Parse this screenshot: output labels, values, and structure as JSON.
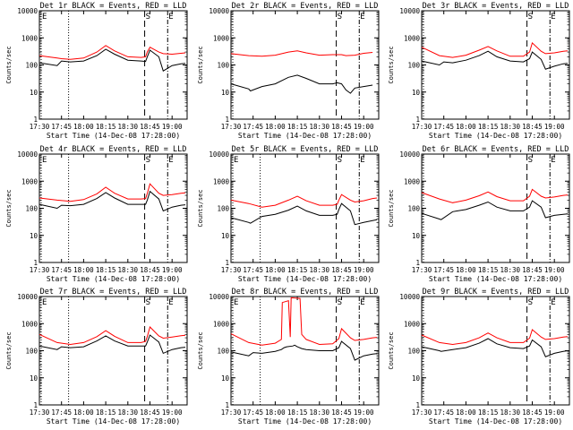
{
  "chart_data": [
    {
      "type": "line",
      "title": "Det 1r BLACK = Events, RED = LLD",
      "xlabel": "Start Time (14-Dec-08 17:28:00)",
      "ylabel": "Counts/sec",
      "xticks": [
        "17:30",
        "17:45",
        "18:00",
        "18:15",
        "18:30",
        "18:45",
        "19:00"
      ],
      "yticks": [
        "1",
        "10",
        "100",
        "1000",
        "10000"
      ],
      "yscale": "log",
      "markers": [
        "E",
        "S",
        "E"
      ],
      "series": [
        {
          "name": "Events",
          "color": "#000000",
          "x": [
            17.5,
            17.7,
            17.75,
            17.85,
            18.0,
            18.15,
            18.25,
            18.35,
            18.5,
            18.65,
            18.7,
            18.72,
            18.75,
            18.85,
            18.9,
            19.0,
            19.1,
            19.15
          ],
          "y": [
            120,
            95,
            140,
            130,
            140,
            220,
            380,
            250,
            150,
            140,
            135,
            200,
            350,
            200,
            60,
            95,
            110,
            115
          ]
        },
        {
          "name": "LLD",
          "color": "#ff0000",
          "x": [
            17.5,
            17.7,
            17.75,
            17.85,
            18.0,
            18.15,
            18.25,
            18.35,
            18.5,
            18.65,
            18.7,
            18.72,
            18.75,
            18.85,
            18.9,
            19.0,
            19.1,
            19.15
          ],
          "y": [
            220,
            180,
            170,
            160,
            180,
            300,
            520,
            330,
            200,
            190,
            200,
            300,
            450,
            300,
            260,
            250,
            270,
            280
          ]
        }
      ]
    },
    {
      "type": "line",
      "title": "Det 2r BLACK = Events, RED = LLD",
      "xlabel": "Start Time (14-Dec-08 17:28:00)",
      "ylabel": "Counts/sec",
      "xticks": [
        "17:30",
        "17:45",
        "18:00",
        "18:15",
        "18:30",
        "18:45",
        "19:00"
      ],
      "yticks": [
        "1",
        "10",
        "100",
        "1000",
        "10000"
      ],
      "yscale": "log",
      "markers": [
        "S",
        "E"
      ],
      "series": [
        {
          "name": "Events",
          "color": "#000000",
          "x": [
            17.5,
            17.7,
            17.72,
            17.85,
            18.0,
            18.15,
            18.25,
            18.35,
            18.5,
            18.65,
            18.7,
            18.75,
            18.8,
            18.85,
            18.9,
            19.0,
            19.1
          ],
          "y": [
            20,
            13,
            11,
            16,
            20,
            35,
            42,
            32,
            20,
            20,
            22,
            20,
            12,
            9,
            14,
            16,
            18
          ]
        },
        {
          "name": "LLD",
          "color": "#ff0000",
          "x": [
            17.5,
            17.7,
            17.85,
            18.0,
            18.15,
            18.25,
            18.35,
            18.5,
            18.65,
            18.75,
            18.8,
            18.9,
            19.0,
            19.1
          ],
          "y": [
            260,
            220,
            210,
            230,
            300,
            330,
            280,
            230,
            240,
            240,
            220,
            230,
            270,
            290
          ]
        }
      ]
    },
    {
      "type": "line",
      "title": "Det 3r BLACK = Events, RED = LLD",
      "xlabel": "Start Time (14-Dec-08 17:28:00)",
      "ylabel": "Counts/sec",
      "xticks": [
        "17:30",
        "17:45",
        "18:00",
        "18:15",
        "18:30",
        "18:45",
        "19:00"
      ],
      "yticks": [
        "1",
        "10",
        "100",
        "1000",
        "10000"
      ],
      "yscale": "log",
      "markers": [
        "S",
        "E"
      ],
      "series": [
        {
          "name": "Events",
          "color": "#000000",
          "x": [
            17.5,
            17.7,
            17.75,
            17.85,
            18.0,
            18.15,
            18.25,
            18.35,
            18.5,
            18.65,
            18.72,
            18.75,
            18.85,
            18.9,
            19.0,
            19.1,
            19.15
          ],
          "y": [
            140,
            100,
            130,
            120,
            150,
            220,
            320,
            200,
            140,
            130,
            170,
            300,
            160,
            70,
            90,
            110,
            115
          ]
        },
        {
          "name": "LLD",
          "color": "#ff0000",
          "x": [
            17.5,
            17.7,
            17.85,
            18.0,
            18.15,
            18.25,
            18.35,
            18.5,
            18.65,
            18.72,
            18.75,
            18.85,
            18.9,
            19.0,
            19.1,
            19.15
          ],
          "y": [
            450,
            220,
            190,
            230,
            350,
            480,
            330,
            210,
            210,
            300,
            650,
            320,
            260,
            280,
            320,
            330
          ]
        }
      ]
    },
    {
      "type": "line",
      "title": "Det 4r BLACK = Events, RED = LLD",
      "xlabel": "Start Time (14-Dec-08 17:28:00)",
      "ylabel": "Counts/sec",
      "xticks": [
        "17:30",
        "17:45",
        "18:00",
        "18:15",
        "18:30",
        "18:45",
        "19:00"
      ],
      "yticks": [
        "1",
        "10",
        "100",
        "1000",
        "10000"
      ],
      "yscale": "log",
      "markers": [
        "E",
        "S",
        "E"
      ],
      "series": [
        {
          "name": "Events",
          "color": "#000000",
          "x": [
            17.5,
            17.7,
            17.75,
            17.85,
            18.0,
            18.15,
            18.25,
            18.35,
            18.5,
            18.65,
            18.7,
            18.72,
            18.75,
            18.85,
            18.9,
            19.0,
            19.1,
            19.15
          ],
          "y": [
            140,
            100,
            130,
            125,
            140,
            230,
            380,
            240,
            140,
            140,
            140,
            200,
            420,
            220,
            80,
            110,
            130,
            135
          ]
        },
        {
          "name": "LLD",
          "color": "#ff0000",
          "x": [
            17.5,
            17.7,
            17.85,
            18.0,
            18.15,
            18.25,
            18.35,
            18.5,
            18.65,
            18.7,
            18.72,
            18.75,
            18.85,
            18.9,
            19.0,
            19.1,
            19.15
          ],
          "y": [
            240,
            200,
            180,
            210,
            340,
            600,
            360,
            220,
            220,
            230,
            350,
            800,
            360,
            300,
            320,
            360,
            370
          ]
        }
      ]
    },
    {
      "type": "line",
      "title": "Det 5r BLACK = Events, RED = LLD",
      "xlabel": "Start Time (14-Dec-08 17:28:00)",
      "ylabel": "Counts/sec",
      "xticks": [
        "17:30",
        "17:45",
        "18:00",
        "18:15",
        "18:30",
        "18:45",
        "19:00"
      ],
      "yticks": [
        "1",
        "10",
        "100",
        "1000",
        "10000"
      ],
      "yscale": "log",
      "markers": [
        "E",
        "S",
        "E"
      ],
      "series": [
        {
          "name": "Events",
          "color": "#000000",
          "x": [
            17.5,
            17.7,
            17.72,
            17.85,
            18.0,
            18.15,
            18.25,
            18.35,
            18.5,
            18.65,
            18.7,
            18.72,
            18.75,
            18.85,
            18.9,
            19.0,
            19.1,
            19.15
          ],
          "y": [
            45,
            30,
            28,
            50,
            60,
            85,
            120,
            80,
            55,
            55,
            60,
            90,
            150,
            80,
            25,
            30,
            35,
            38
          ]
        },
        {
          "name": "LLD",
          "color": "#ff0000",
          "x": [
            17.5,
            17.7,
            17.85,
            18.0,
            18.15,
            18.25,
            18.35,
            18.5,
            18.65,
            18.7,
            18.72,
            18.75,
            18.85,
            18.9,
            19.0,
            19.1,
            19.15
          ],
          "y": [
            200,
            150,
            110,
            130,
            200,
            280,
            190,
            130,
            130,
            140,
            200,
            320,
            200,
            170,
            190,
            230,
            240
          ]
        }
      ]
    },
    {
      "type": "line",
      "title": "Det 6r BLACK = Events, RED = LLD",
      "xlabel": "Start Time (14-Dec-08 17:28:00)",
      "ylabel": "Counts/sec",
      "xticks": [
        "17:30",
        "17:45",
        "18:00",
        "18:15",
        "18:30",
        "18:45",
        "19:00"
      ],
      "yticks": [
        "1",
        "10",
        "100",
        "1000",
        "10000"
      ],
      "yscale": "log",
      "markers": [
        "S",
        "E"
      ],
      "series": [
        {
          "name": "Events",
          "color": "#000000",
          "x": [
            17.5,
            17.7,
            17.72,
            17.85,
            18.0,
            18.15,
            18.25,
            18.35,
            18.5,
            18.65,
            18.72,
            18.75,
            18.85,
            18.9,
            19.0,
            19.1,
            19.15
          ],
          "y": [
            65,
            40,
            38,
            75,
            90,
            130,
            170,
            110,
            80,
            80,
            110,
            190,
            110,
            45,
            55,
            60,
            62
          ]
        },
        {
          "name": "LLD",
          "color": "#ff0000",
          "x": [
            17.5,
            17.7,
            17.85,
            18.0,
            18.15,
            18.25,
            18.35,
            18.5,
            18.65,
            18.72,
            18.75,
            18.85,
            18.9,
            19.0,
            19.1,
            19.15
          ],
          "y": [
            380,
            220,
            160,
            200,
            290,
            400,
            270,
            190,
            190,
            280,
            500,
            280,
            240,
            260,
            300,
            310
          ]
        }
      ]
    },
    {
      "type": "line",
      "title": "Det 7r BLACK = Events, RED = LLD",
      "xlabel": "Start Time (14-Dec-08 17:28:00)",
      "ylabel": "Counts/sec",
      "xticks": [
        "17:30",
        "17:45",
        "18:00",
        "18:15",
        "18:30",
        "18:45",
        "19:00"
      ],
      "yticks": [
        "1",
        "10",
        "100",
        "1000",
        "10000"
      ],
      "yscale": "log",
      "markers": [
        "E",
        "S",
        "E"
      ],
      "series": [
        {
          "name": "Events",
          "color": "#000000",
          "x": [
            17.5,
            17.7,
            17.75,
            17.85,
            18.0,
            18.15,
            18.25,
            18.35,
            18.5,
            18.65,
            18.7,
            18.72,
            18.75,
            18.85,
            18.9,
            19.0,
            19.1,
            19.15
          ],
          "y": [
            150,
            110,
            140,
            130,
            140,
            230,
            350,
            230,
            150,
            150,
            150,
            210,
            380,
            210,
            80,
            110,
            130,
            135
          ]
        },
        {
          "name": "LLD",
          "color": "#ff0000",
          "x": [
            17.5,
            17.7,
            17.85,
            18.0,
            18.15,
            18.25,
            18.35,
            18.5,
            18.65,
            18.7,
            18.72,
            18.75,
            18.85,
            18.9,
            19.0,
            19.1,
            19.15
          ],
          "y": [
            400,
            200,
            170,
            200,
            330,
            550,
            340,
            200,
            200,
            220,
            330,
            750,
            350,
            290,
            320,
            360,
            370
          ]
        }
      ]
    },
    {
      "type": "line",
      "title": "Det 8r BLACK = Events, RED = LLD",
      "xlabel": "Start Time (14-Dec-08 17:28:00)",
      "ylabel": "Counts/sec",
      "xticks": [
        "17:30",
        "17:45",
        "18:00",
        "18:15",
        "18:30",
        "18:45",
        "19:00"
      ],
      "yticks": [
        "1",
        "10",
        "100",
        "1000",
        "10000"
      ],
      "yscale": "log",
      "markers": [
        "E",
        "S",
        "E"
      ],
      "series": [
        {
          "name": "Events",
          "color": "#000000",
          "x": [
            17.5,
            17.7,
            17.75,
            17.85,
            18.0,
            18.07,
            18.1,
            18.13,
            18.2,
            18.22,
            18.25,
            18.3,
            18.35,
            18.5,
            18.65,
            18.72,
            18.75,
            18.85,
            18.9,
            19.0,
            19.1,
            19.15
          ],
          "y": [
            90,
            65,
            85,
            80,
            95,
            110,
            130,
            140,
            150,
            160,
            140,
            120,
            110,
            100,
            100,
            130,
            220,
            120,
            45,
            65,
            75,
            78
          ]
        },
        {
          "name": "LLD",
          "color": "#ff0000",
          "x": [
            17.5,
            17.7,
            17.85,
            18.0,
            18.07,
            18.08,
            18.15,
            18.17,
            18.18,
            18.28,
            18.3,
            18.35,
            18.5,
            18.65,
            18.72,
            18.75,
            18.85,
            18.9,
            19.0,
            19.1,
            19.15
          ],
          "y": [
            420,
            200,
            160,
            190,
            260,
            6000,
            7000,
            320,
            9000,
            8500,
            400,
            260,
            170,
            180,
            280,
            650,
            300,
            240,
            260,
            300,
            310
          ]
        }
      ]
    },
    {
      "type": "line",
      "title": "Det 9r BLACK = Events, RED = LLD",
      "xlabel": "Start Time (14-Dec-08 17:28:00)",
      "ylabel": "Counts/sec",
      "xticks": [
        "17:30",
        "17:45",
        "18:00",
        "18:15",
        "18:30",
        "18:45",
        "19:00"
      ],
      "yticks": [
        "1",
        "10",
        "100",
        "1000",
        "10000"
      ],
      "yscale": "log",
      "markers": [
        "S",
        "E"
      ],
      "series": [
        {
          "name": "Events",
          "color": "#000000",
          "x": [
            17.5,
            17.7,
            17.72,
            17.85,
            18.0,
            18.15,
            18.25,
            18.35,
            18.5,
            18.65,
            18.72,
            18.75,
            18.85,
            18.9,
            19.0,
            19.1,
            19.15
          ],
          "y": [
            140,
            100,
            95,
            110,
            130,
            190,
            280,
            180,
            130,
            120,
            150,
            250,
            140,
            60,
            80,
            95,
            100
          ]
        },
        {
          "name": "LLD",
          "color": "#ff0000",
          "x": [
            17.5,
            17.7,
            17.85,
            18.0,
            18.15,
            18.25,
            18.35,
            18.5,
            18.65,
            18.72,
            18.75,
            18.85,
            18.9,
            19.0,
            19.1,
            19.15
          ],
          "y": [
            380,
            200,
            170,
            200,
            300,
            450,
            300,
            200,
            200,
            290,
            600,
            320,
            260,
            280,
            320,
            330
          ]
        }
      ]
    }
  ]
}
